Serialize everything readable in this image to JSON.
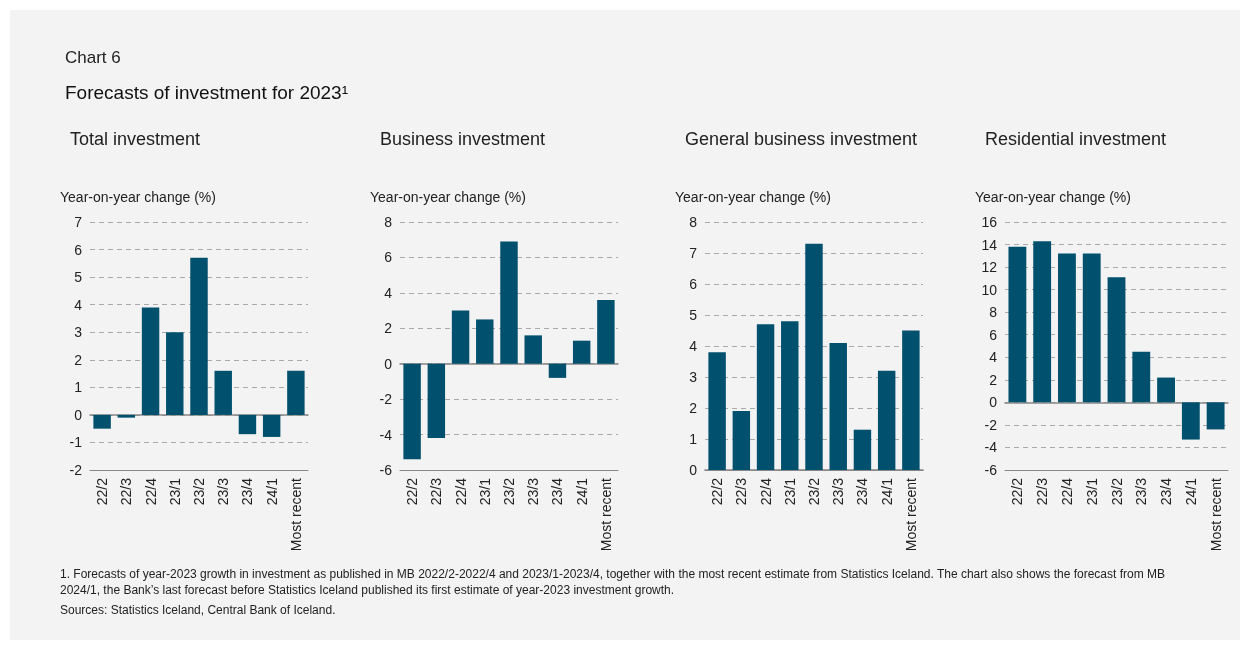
{
  "chart_data": [
    {
      "type": "other",
      "title": "Chart 6",
      "subtitle": "Forecasts of investment for 2023¹"
    },
    {
      "type": "bar",
      "title": "Total investment",
      "ylabel": "Year-on-year change (%)",
      "categories": [
        "22/2",
        "22/3",
        "22/4",
        "23/1",
        "23/2",
        "23/3",
        "23/4",
        "24/1",
        "Most recent"
      ],
      "values": [
        -0.5,
        -0.1,
        3.9,
        3.0,
        5.7,
        1.6,
        -0.7,
        -0.8,
        1.6
      ],
      "color": "#00506e",
      "ylim": [
        -2,
        7
      ],
      "yticks": [
        -2,
        -1,
        0,
        1,
        2,
        3,
        4,
        5,
        6,
        7
      ],
      "grid": "y"
    },
    {
      "type": "bar",
      "title": "Business investment",
      "ylabel": "Year-on-year change (%)",
      "categories": [
        "22/2",
        "22/3",
        "22/4",
        "23/1",
        "23/2",
        "23/3",
        "23/4",
        "24/1",
        "Most recent"
      ],
      "values": [
        -5.4,
        -4.2,
        3.0,
        2.5,
        6.9,
        1.6,
        -0.8,
        1.3,
        3.6
      ],
      "color": "#00506e",
      "ylim": [
        -6,
        8
      ],
      "yticks": [
        -6,
        -4,
        -2,
        0,
        2,
        4,
        6,
        8
      ],
      "grid": "y"
    },
    {
      "type": "bar",
      "title": "General business investment",
      "ylabel": "Year-on-year change (%)",
      "categories": [
        "22/2",
        "22/3",
        "22/4",
        "23/1",
        "23/2",
        "23/3",
        "23/4",
        "24/1",
        "Most recent"
      ],
      "values": [
        3.8,
        1.9,
        4.7,
        4.8,
        7.3,
        4.1,
        1.3,
        3.2,
        4.5
      ],
      "color": "#00506e",
      "ylim": [
        0,
        8
      ],
      "yticks": [
        0,
        1,
        2,
        3,
        4,
        5,
        6,
        7,
        8
      ],
      "grid": "y"
    },
    {
      "type": "bar",
      "title": "Residential investment",
      "ylabel": "Year-on-year change (%)",
      "categories": [
        "22/2",
        "22/3",
        "22/4",
        "23/1",
        "23/2",
        "23/3",
        "23/4",
        "24/1",
        "Most recent"
      ],
      "values": [
        13.8,
        14.3,
        13.2,
        13.2,
        11.1,
        4.5,
        2.2,
        -3.3,
        -2.4
      ],
      "color": "#00506e",
      "ylim": [
        -6,
        16
      ],
      "yticks": [
        -6,
        -4,
        -2,
        0,
        2,
        4,
        6,
        8,
        10,
        12,
        14,
        16
      ],
      "grid": "y"
    },
    {
      "type": "other",
      "annotations": [
        "1. Forecasts of year-2023 growth in investment as published in MB 2022/2-2022/4 and 2023/1-2023/4, together with the most recent estimate from Statistics Iceland. The chart also shows the forecast from MB 2024/1, the Bank’s last forecast before Statistics Iceland published its first estimate of year-2023 investment growth.",
        "Sources: Statistics Iceland, Central Bank of Iceland."
      ]
    }
  ]
}
